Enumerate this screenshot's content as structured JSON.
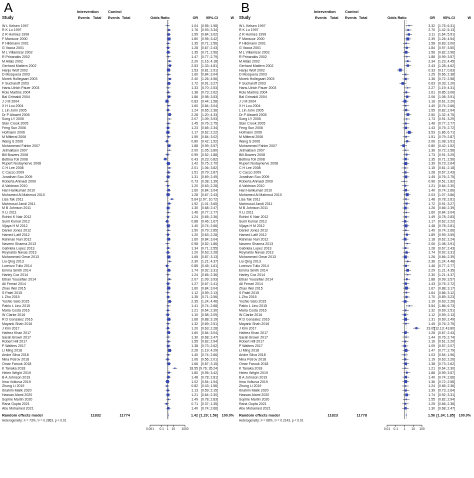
{
  "chart_data": [
    {
      "type": "forest",
      "panel_letter": "A",
      "columns": {
        "study": "Study",
        "group1": "Intervention",
        "group2": "Control",
        "events": "Events",
        "total": "Total",
        "odds_ratio": "Odds Ratio",
        "or": "OR",
        "ci": "95%-CI",
        "weight": "W"
      },
      "xaxis": {
        "scale": "log",
        "ticks": [
          "0.001",
          "0.1",
          "1",
          "10",
          "1000"
        ],
        "tick_values": [
          0.001,
          0.1,
          1,
          10,
          1000
        ]
      },
      "studies": [
        {
          "name": "W L Kelsen 1997",
          "or": 1.04
        },
        {
          "name": "R K Lu 1997",
          "or": 1.76
        },
        {
          "name": "Z R Holmes 1999",
          "or": 1.59
        },
        {
          "name": "F Mansoor 2000",
          "or": 1.8
        },
        {
          "name": "P Hildmann 2001",
          "or": 1.35
        },
        {
          "name": "G Vacca 2001",
          "or": 1.28
        },
        {
          "name": "M L Villamizar 2002",
          "or": 1.35
        },
        {
          "name": "R Prinarakis 2002",
          "or": 1.47
        },
        {
          "name": "M Allais 2002",
          "or": 2.2
        },
        {
          "name": "Gerhard Mattern 2002",
          "or": 2.53
        },
        {
          "name": "Hanjo Wolf 2002",
          "or": 1.53
        },
        {
          "name": "D Mosquera 2003",
          "or": 1.6
        },
        {
          "name": "Morek Hollegaart 2003",
          "or": 2.4
        },
        {
          "name": "F Sucharoff 2003",
          "or": 1.72
        },
        {
          "name": "Hans-Ulrich Pauer 2003",
          "or": 1.33
        },
        {
          "name": "Rolo Martins 2004",
          "or": 1.38
        },
        {
          "name": "Bal Grimaldi 2004",
          "or": 1.86
        },
        {
          "name": "J J M 2004",
          "or": 0.83
        },
        {
          "name": "X H Lou 2004",
          "or": 1.6
        },
        {
          "name": "L Lin Jolm 2005",
          "or": 1.24
        },
        {
          "name": "Dr P Alsweit 2005",
          "or": 2.28
        },
        {
          "name": "Song LY 2005",
          "or": 2.07
        },
        {
          "name": "Stan Crook 2005",
          "or": 1.45
        },
        {
          "name": "Feng Sun 2006",
          "or": 1.23
        },
        {
          "name": "Hofmann 2006",
          "or": 1.17
        },
        {
          "name": "M Mitteral 2006",
          "or": 1.59
        },
        {
          "name": "Wang S 2006",
          "or": 0.8
        },
        {
          "name": "Mohammed Fahim 2007",
          "or": 1.88
        },
        {
          "name": "Jetmaitsen 2007",
          "or": 2.0
        },
        {
          "name": "Bill Bowers 2008",
          "or": 0.99
        },
        {
          "name": "Bettina Toll 2008",
          "or": 0.43
        },
        {
          "name": "Rupert Nodaynerve 2008",
          "or": 1.42
        },
        {
          "name": "C H Lee 2008",
          "or": 2.01
        },
        {
          "name": "C Cacco 2009",
          "or": 1.51
        },
        {
          "name": "Jonathan Soo 2009",
          "or": 1.31
        },
        {
          "name": "Roberta Ahmadi 2009",
          "or": 0.73
        },
        {
          "name": "A Valdman 2010",
          "or": 1.2
        },
        {
          "name": "Hari Harikumari 2010",
          "or": 1.6
        },
        {
          "name": "Mohamed Al Mahmud 2010",
          "or": 1.28
        },
        {
          "name": "Lisa Tak 2011",
          "or": 5.64
        },
        {
          "name": "Mahmoud Jandi 2011",
          "or": 1.92
        },
        {
          "name": "M B Johnson 2011",
          "or": 1.3
        },
        {
          "name": "X Li 2011",
          "or": 1.46
        },
        {
          "name": "Rohini K Nair 2012",
          "or": 1.24
        },
        {
          "name": "Sunil Kumar 2012",
          "or": 0.88
        },
        {
          "name": "Vijaya H M 2012",
          "or": 1.4
        },
        {
          "name": "Daniel Jones 2012",
          "or": 1.5
        },
        {
          "name": "Hamed Latif 2012",
          "or": 1.2
        },
        {
          "name": "Rahman Nuri 2012",
          "or": 1.6
        },
        {
          "name": "Naveen Sharma 2013",
          "or": 0.98
        },
        {
          "name": "Gabriela Lopez 2013",
          "or": 1.34
        },
        {
          "name": "Reynaldo Navas 2013",
          "or": 1.2
        },
        {
          "name": "Mohammed Omar 2013",
          "or": 1.65
        },
        {
          "name": "Liu Qing 2013",
          "or": 2.3
        },
        {
          "name": "Lorenzo Tulio 2014",
          "or": 0.85
        },
        {
          "name": "Emma Smith 2014",
          "or": 1.74
        },
        {
          "name": "Harley Cox 2014",
          "or": 1.24
        },
        {
          "name": "Ethan Yousefian 2014",
          "or": 2.07
        },
        {
          "name": "Ali Ferrari 2014",
          "or": 1.27
        },
        {
          "name": "Zhao Wei 2015",
          "or": 1.6
        },
        {
          "name": "S Patel 2015",
          "or": 1.12
        },
        {
          "name": "L Zhu 2015",
          "or": 1.35
        },
        {
          "name": "Yoshio Sato 2015",
          "or": 2.35
        },
        {
          "name": "Pablo L Lino 2015",
          "or": 1.41
        },
        {
          "name": "Maria Costa 2016",
          "or": 1.21
        },
        {
          "name": "W Clarke 2016",
          "or": 1.1
        },
        {
          "name": "R D Gonzalez 2016",
          "or": 1.68
        },
        {
          "name": "Mayank Shah 2016",
          "or": 1.32
        },
        {
          "name": "J Kim 2017",
          "or": 1.2
        },
        {
          "name": "Hafeez Khan 2017",
          "or": 1.6
        },
        {
          "name": "Sarah Brown 2017",
          "or": 1.3
        },
        {
          "name": "Robert Hill 2017",
          "or": 1.55
        },
        {
          "name": "P Walters 2017",
          "or": 1.38
        },
        {
          "name": "Li Ming 2018",
          "or": 2.26
        },
        {
          "name": "Andre Silva 2018",
          "or": 1.4
        },
        {
          "name": "Nina Petrov 2018",
          "or": 1.06
        },
        {
          "name": "Omar Farouk 2018",
          "or": 1.66
        },
        {
          "name": "K Tanaka 2018",
          "or": 18.55
        },
        {
          "name": "Helen Wright 2019",
          "or": 1.8
        },
        {
          "name": "B A Johnson 2019",
          "or": 1.48
        },
        {
          "name": "Irina Volkova 2019",
          "or": 1.02
        },
        {
          "name": "Zhong Li 2019",
          "or": 0.82
        },
        {
          "name": "Ibrahim Malik 2020",
          "or": 1.13
        },
        {
          "name": "Hassan Alami 2020",
          "or": 1.21
        },
        {
          "name": "Sophie Martin 2020",
          "or": 1.49
        },
        {
          "name": "Rana Gupta 2021",
          "or": 0.71
        },
        {
          "name": "Abu Mohamed 2021",
          "or": 1.4
        }
      ],
      "pooled": {
        "label": "Random effects model",
        "events_total_1": "11832",
        "events_total_2": "11774",
        "or": 1.42,
        "ci": "[1.29; 1.56]",
        "weight": "100.0%"
      },
      "heterogeneity": "Heterogeneity: I² = 73%, τ² = 0.2863, p < 0.01"
    },
    {
      "type": "forest",
      "panel_letter": "B",
      "columns": {
        "study": "Study",
        "group1": "Intervention",
        "group2": "Control",
        "events": "Events",
        "total": "Total",
        "odds_ratio": "Odds Ratio",
        "or": "OR",
        "ci": "95%-CI",
        "weight": "W"
      },
      "xaxis": {
        "scale": "log",
        "ticks": [
          "0.01",
          "0.1",
          "1",
          "10",
          "100"
        ],
        "tick_values": [
          0.01,
          0.1,
          1,
          10,
          100
        ]
      },
      "studies": [
        {
          "name": "W L Kelsen 1997",
          "or": 3.32
        },
        {
          "name": "R K Lu 1997",
          "or": 2.7
        },
        {
          "name": "Z R Holmes 1999",
          "or": 3.11
        },
        {
          "name": "F Mansoor 2000",
          "or": 2.39
        },
        {
          "name": "P Hildmann 2001",
          "or": 1.58
        },
        {
          "name": "G Vacca 2001",
          "or": 1.84
        },
        {
          "name": "M L Villamizar 2002",
          "or": 1.56
        },
        {
          "name": "R Prinarakis 2002",
          "or": 1.88
        },
        {
          "name": "M Allais 2002",
          "or": 2.34
        },
        {
          "name": "Gerhard Mattern 2002",
          "or": 2.43
        },
        {
          "name": "Hanjo Wolf 2002",
          "or": 0.33
        },
        {
          "name": "D Mosquera 2003",
          "or": 1.25
        },
        {
          "name": "Morek Hollegaart 2003",
          "or": 1.36
        },
        {
          "name": "F Sucharoff 2003",
          "or": 0.63
        },
        {
          "name": "Hans-Ulrich Pauer 2003",
          "or": 2.27
        },
        {
          "name": "Rolo Martins 2004",
          "or": 1.61
        },
        {
          "name": "Bal Grimaldi 2004",
          "or": 2.06
        },
        {
          "name": "J J M 2004",
          "or": 1.16
        },
        {
          "name": "X H Lou 2004",
          "or": 1.4
        },
        {
          "name": "L Lin Jolm 2005",
          "or": 1.55
        },
        {
          "name": "Dr P Alsweit 2005",
          "or": 2.5
        },
        {
          "name": "Song LY 2005",
          "or": 1.73
        },
        {
          "name": "Stan Crook 2005",
          "or": 1.46
        },
        {
          "name": "Feng Sun 2006",
          "or": 1.43
        },
        {
          "name": "Hofmann 2006",
          "or": 3.53
        },
        {
          "name": "M Mitteral 2006",
          "or": 1.51
        },
        {
          "name": "Wang S 2006",
          "or": 2.06
        },
        {
          "name": "Mohammed Fahim 2007",
          "or": 0.8
        },
        {
          "name": "Jetmaitsen 2007",
          "or": 1.36
        },
        {
          "name": "Bill Bowers 2008",
          "or": 1.73
        },
        {
          "name": "Bettina Toll 2008",
          "or": 1.35
        },
        {
          "name": "Rupert Nodaynerve 2008",
          "or": 1.39
        },
        {
          "name": "C H Lee 2008",
          "or": 1.15
        },
        {
          "name": "C Cacco 2009",
          "or": 1.28
        },
        {
          "name": "Jonathan Soo 2009",
          "or": 1.45
        },
        {
          "name": "Roberta Ahmadi 2009",
          "or": 0.96
        },
        {
          "name": "A Valdman 2010",
          "or": 1.21
        },
        {
          "name": "Hari Harikumari 2010",
          "or": 1.4
        },
        {
          "name": "Mohamed Al Mahmud 2010",
          "or": 2.03
        },
        {
          "name": "Lisa Tak 2011",
          "or": 1.48
        },
        {
          "name": "Mahmoud Jandi 2011",
          "or": 1.72
        },
        {
          "name": "M B Johnson 2011",
          "or": 1.26
        },
        {
          "name": "X Li 2011",
          "or": 1.6
        },
        {
          "name": "Rohini K Nair 2012",
          "or": 1.49
        },
        {
          "name": "Sunil Kumar 2012",
          "or": 1.17
        },
        {
          "name": "Vijaya H M 2012",
          "or": 1.48
        },
        {
          "name": "Daniel Jones 2012",
          "or": 1.4
        },
        {
          "name": "Hamed Latif 2012",
          "or": 1.89
        },
        {
          "name": "Rahman Nuri 2012",
          "or": 1.18
        },
        {
          "name": "Naveen Sharma 2013",
          "or": 2.06
        },
        {
          "name": "Gabriela Lopez 2013",
          "or": 1.28
        },
        {
          "name": "Reynaldo Navas 2013",
          "or": 1.74
        },
        {
          "name": "Mohammed Omar 2013",
          "or": 1.26
        },
        {
          "name": "Liu Qing 2013",
          "or": 2.36
        },
        {
          "name": "Lorenzo Tulio 2014",
          "or": 1.46
        },
        {
          "name": "Emma Smith 2014",
          "or": 2.29
        },
        {
          "name": "Harley Cox 2014",
          "or": 2.3
        },
        {
          "name": "Ethan Yousefian 2014",
          "or": 1.88
        },
        {
          "name": "Ali Ferrari 2014",
          "or": 1.43
        },
        {
          "name": "Zhao Wei 2015",
          "or": 1.67
        },
        {
          "name": "S Patel 2015",
          "or": 1.64
        },
        {
          "name": "L Zhu 2015",
          "or": 1.7
        },
        {
          "name": "Yoshio Sato 2015",
          "or": 1.19
        },
        {
          "name": "Pablo L Lino 2015",
          "or": 3.54
        },
        {
          "name": "Maria Costa 2016",
          "or": 1.32
        },
        {
          "name": "W Clarke 2016",
          "or": 1.12
        },
        {
          "name": "R D Gonzalez 2016",
          "or": 1.31
        },
        {
          "name": "Mayank Shah 2016",
          "or": 1.45
        },
        {
          "name": "J Kim 2017",
          "or": 23.05
        },
        {
          "name": "Hafeez Khan 2017",
          "or": 1.28
        },
        {
          "name": "Sarah Brown 2017",
          "or": 1.44
        },
        {
          "name": "Robert Hill 2017",
          "or": 1.16
        },
        {
          "name": "P Walters 2017",
          "or": 1.09
        },
        {
          "name": "Li Ming 2018",
          "or": 1.47
        },
        {
          "name": "Andre Silva 2018",
          "or": 1.03
        },
        {
          "name": "Nina Petrov 2018",
          "or": 1.19
        },
        {
          "name": "Omar Farouk 2018",
          "or": 1.38
        },
        {
          "name": "K Tanaka 2018",
          "or": 1.21
        },
        {
          "name": "Helen Wright 2019",
          "or": 1.88
        },
        {
          "name": "B A Johnson 2019",
          "or": 1.4
        },
        {
          "name": "Irina Volkova 2019",
          "or": 1.36
        },
        {
          "name": "Zhong Li 2019",
          "or": 1.24
        },
        {
          "name": "Ibrahim Malik 2020",
          "or": 1.39
        },
        {
          "name": "Hassan Alami 2020",
          "or": 1.74
        },
        {
          "name": "Sophie Martin 2020",
          "or": 1.55
        },
        {
          "name": "Rana Gupta 2021",
          "or": 1.25
        },
        {
          "name": "Abu Mohamed 2021",
          "or": 1.3
        }
      ],
      "pooled": {
        "label": "Random effects model",
        "events_total_1": "11823",
        "events_total_2": "11778",
        "or": 1.56,
        "ci": "[1.34; 1.85]",
        "weight": "100.0%"
      },
      "heterogeneity": "Heterogeneity: I² = 68%, τ² = 0.2143, p < 0.01"
    }
  ]
}
